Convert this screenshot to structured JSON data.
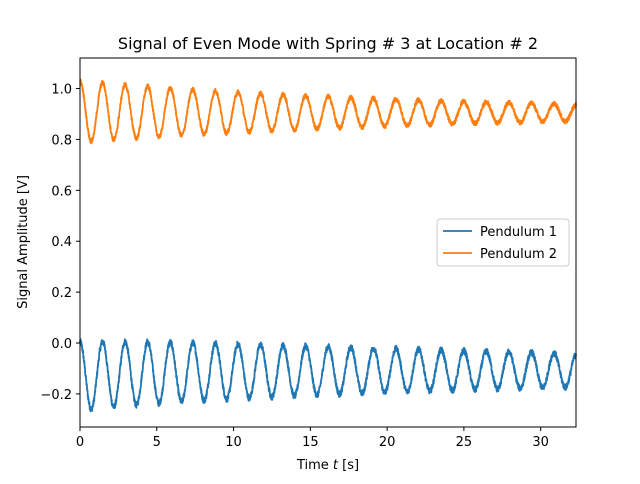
{
  "chart_data": {
    "type": "line",
    "title": "Signal of Even Mode with Spring # 3 at Location # 2",
    "xlabel_prefix": "Time ",
    "xlabel_var": "t",
    "xlabel_suffix": " [s]",
    "ylabel": "Signal Amplitude [V]",
    "xlim": [
      0,
      32.3
    ],
    "ylim": [
      -0.33,
      1.12
    ],
    "xticks": [
      0,
      5,
      10,
      15,
      20,
      25,
      30
    ],
    "xtick_labels": [
      "0",
      "5",
      "10",
      "15",
      "20",
      "25",
      "30"
    ],
    "yticks": [
      -0.2,
      0.0,
      0.2,
      0.4,
      0.6,
      0.8,
      1.0
    ],
    "ytick_labels": [
      "−0.2",
      "0.0",
      "0.2",
      "0.4",
      "0.6",
      "0.8",
      "1.0"
    ],
    "legend_position": "center-right",
    "grid": false,
    "series": [
      {
        "name": "Pendulum 1",
        "color": "#1f77b4",
        "model": {
          "offset": -0.107,
          "offset_initial": -0.023,
          "offset_tau": 6,
          "amplitude_initial": 0.135,
          "amplitude_tau": 45,
          "period": 1.47,
          "phase": 1.5708,
          "noise": 0.012
        },
        "samples": {
          "t": [
            0,
            2.6,
            4.5,
            10,
            20,
            30,
            32.3
          ],
          "y": [
            0.03,
            -0.25,
            0.03,
            -0.19,
            -0.17,
            -0.13,
            -0.12
          ]
        }
      },
      {
        "name": "Pendulum 2",
        "color": "#ff7f0e",
        "model": {
          "offset": 0.905,
          "offset_initial": 0.005,
          "offset_tau": 8,
          "amplitude_initial": 0.12,
          "amplitude_tau": 25,
          "period": 1.47,
          "phase": 1.5708,
          "noise": 0.009
        },
        "samples": {
          "t": [
            0,
            0.9,
            1.7,
            10,
            20,
            30,
            32.3
          ],
          "y": [
            1.03,
            0.78,
            1.05,
            0.85,
            0.95,
            0.95,
            0.87
          ]
        }
      }
    ]
  }
}
